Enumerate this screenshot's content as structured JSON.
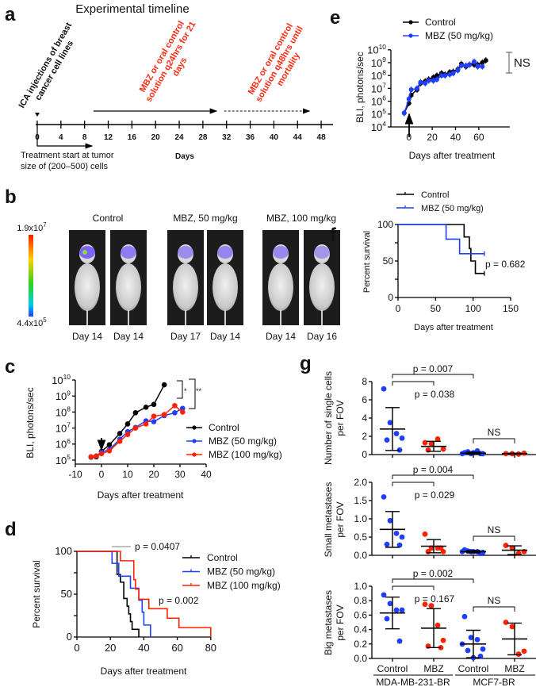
{
  "log_base_label": "10",
  "panel_a": {
    "label": "a",
    "title": "Experimental timeline",
    "axis_ticks": [
      "0",
      "4",
      "8",
      "12",
      "16",
      "20",
      "24",
      "28",
      "32",
      "36",
      "40",
      "44",
      "48"
    ],
    "xlabel": "Days",
    "injection_text": [
      "ICA injections of breast",
      "cancer cell lines"
    ],
    "phase1_text": [
      "MBZ or oral control",
      "solution q24hrs for 21",
      "days"
    ],
    "phase1_days": [
      9.5,
      30.3
    ],
    "phase2_text": [
      "MBZ or oral control",
      "solution q48hrs until",
      "mortality"
    ],
    "phase2_days": [
      31.6,
      46
    ],
    "treatment_note": [
      "Treatment start at tumor",
      "size of (200–500) cells"
    ],
    "accent_color": "#ff2a14"
  },
  "panel_b": {
    "label": "b",
    "colorbar_max": {
      "mantissa": "1.9x10",
      "exp": "7"
    },
    "colorbar_min": {
      "mantissa": "4.4x10",
      "exp": "5"
    },
    "groups": [
      {
        "name": "Control",
        "mice": [
          {
            "day": "Day 14",
            "signal": 0.9
          },
          {
            "day": "Day 14",
            "signal": 0.6
          }
        ]
      },
      {
        "name": "MBZ, 50 mg/kg",
        "mice": [
          {
            "day": "Day 17",
            "signal": 0.4
          },
          {
            "day": "Day 14",
            "signal": 0.5
          }
        ]
      },
      {
        "name": "MBZ, 100 mg/kg",
        "mice": [
          {
            "day": "Day 14",
            "signal": 0.45
          },
          {
            "day": "Day 16",
            "signal": 0.3
          }
        ]
      }
    ]
  },
  "chart_data": [
    {
      "panel": "c",
      "type": "line",
      "yscale": "log",
      "xlabel": "Days after treatment",
      "ylabel": "BLI, photons/sec",
      "xlim": [
        -10,
        40
      ],
      "xticks": [
        "-10",
        "0",
        "10",
        "20",
        "30",
        "40"
      ],
      "ylim_exp": [
        5,
        10
      ],
      "yticks_exp": [
        "5",
        "6",
        "7",
        "8",
        "9",
        "10"
      ],
      "treatment_arrow_day": 0,
      "significance": [
        "*",
        "**"
      ],
      "series": [
        {
          "name": "Control",
          "color": "#000000",
          "x": [
            -4,
            -2,
            0,
            3,
            7,
            10,
            13,
            17,
            20,
            24
          ],
          "y": [
            160000.0,
            160000.0,
            350000.0,
            900000.0,
            4600000.0,
            18000000.0,
            90000000.0,
            200000000.0,
            300000000.0,
            5000000000.0
          ]
        },
        {
          "name": "MBZ (50 mg/kg)",
          "color": "#1f3fff",
          "x": [
            -4,
            -2,
            0,
            3,
            7,
            10,
            13,
            17,
            20,
            24,
            28,
            31
          ],
          "y": [
            150000.0,
            180000.0,
            320000.0,
            450000.0,
            2000000.0,
            6000000.0,
            11000000.0,
            28000000.0,
            25000000.0,
            60000000.0,
            90000000.0,
            170000000.0
          ]
        },
        {
          "name": "MBZ (100 mg/kg)",
          "color": "#ff2200",
          "x": [
            -4,
            -2,
            0,
            3,
            7,
            10,
            13,
            17,
            20,
            24,
            28,
            31
          ],
          "y": [
            160000.0,
            180000.0,
            250000.0,
            380000.0,
            1500000.0,
            4000000.0,
            10000000.0,
            18000000.0,
            55000000.0,
            70000000.0,
            250000000.0,
            100000000.0
          ]
        }
      ],
      "legend": "right"
    },
    {
      "panel": "d",
      "type": "line",
      "subtype": "kaplan-meier",
      "xlabel": "Days after treatment",
      "ylabel": "Percent survival",
      "xlim": [
        0,
        80
      ],
      "xticks": [
        "0",
        "20",
        "40",
        "60",
        "80"
      ],
      "ylim": [
        0,
        100
      ],
      "yticks": [
        "0",
        "50",
        "100"
      ],
      "annotations": [
        "p = 0.0407",
        "p = 0.002"
      ],
      "series": [
        {
          "name": "Control",
          "color": "#000000",
          "steps": [
            [
              0,
              100
            ],
            [
              24,
              73
            ],
            [
              26,
              64
            ],
            [
              28,
              45
            ],
            [
              30,
              36
            ],
            [
              31,
              27
            ],
            [
              32,
              18
            ],
            [
              33,
              9
            ],
            [
              37,
              0
            ]
          ]
        },
        {
          "name": "MBZ (50 mg/kg)",
          "color": "#1f3fff",
          "steps": [
            [
              0,
              100
            ],
            [
              21,
              86
            ],
            [
              25,
              71
            ],
            [
              32,
              57
            ],
            [
              37,
              43
            ],
            [
              39,
              29
            ],
            [
              40,
              14
            ],
            [
              44,
              0
            ]
          ]
        },
        {
          "name": "MBZ (100 mg/kg)",
          "color": "#ff2200",
          "steps": [
            [
              0,
              100
            ],
            [
              26,
              89
            ],
            [
              34,
              67
            ],
            [
              35,
              56
            ],
            [
              37,
              44
            ],
            [
              43,
              33
            ],
            [
              54,
              22
            ],
            [
              61,
              11
            ],
            [
              80,
              0
            ]
          ]
        }
      ],
      "legend": "top-right"
    },
    {
      "panel": "e",
      "type": "line",
      "yscale": "log",
      "xlabel": "Days after treatment",
      "ylabel": "BLI, photons/sec",
      "xlim": [
        -10,
        80
      ],
      "xticks": [
        "0",
        "20",
        "40",
        "60"
      ],
      "ylim_exp": [
        4,
        10
      ],
      "yticks_exp": [
        "4",
        "5",
        "6",
        "7",
        "8",
        "9",
        "10"
      ],
      "annotation": "NS",
      "series": [
        {
          "name": "Control",
          "color": "#000000",
          "x": [
            -4,
            0,
            2,
            7,
            10,
            14,
            17,
            21,
            24,
            28,
            31,
            35,
            38,
            42,
            45,
            49,
            52,
            56,
            59,
            63,
            66
          ],
          "y": [
            120000.0,
            700000.0,
            3000000.0,
            8000000.0,
            25000000.0,
            35000000.0,
            50000000.0,
            70000000.0,
            100000000.0,
            150000000.0,
            120000000.0,
            180000000.0,
            200000000.0,
            300000000.0,
            800000000.0,
            500000000.0,
            700000000.0,
            700000000.0,
            700000000.0,
            1000000000.0,
            1500000000.0
          ]
        },
        {
          "name": "MBZ (50 mg/kg)",
          "color": "#1f3fff",
          "x": [
            -4,
            0,
            2,
            7,
            10,
            14,
            17,
            21,
            24,
            28,
            31,
            35,
            38,
            42,
            45,
            49,
            52,
            56,
            59,
            63
          ],
          "y": [
            120000.0,
            1500000.0,
            8000000.0,
            10000000.0,
            30000000.0,
            25000000.0,
            40000000.0,
            40000000.0,
            50000000.0,
            100000000.0,
            100000000.0,
            120000000.0,
            150000000.0,
            250000000.0,
            600000000.0,
            600000000.0,
            700000000.0,
            1200000000.0,
            500000000.0,
            500000000.0
          ]
        }
      ],
      "legend": "top-left"
    },
    {
      "panel": "f",
      "type": "line",
      "subtype": "kaplan-meier",
      "xlabel": "Days after treatment",
      "ylabel": "Percent survival",
      "xlim": [
        0,
        150
      ],
      "xticks": [
        "0",
        "50",
        "100",
        "150"
      ],
      "ylim": [
        0,
        100
      ],
      "yticks": [
        "0",
        "50",
        "100"
      ],
      "annotation": "p = 0.682",
      "series": [
        {
          "name": "Control",
          "color": "#000000",
          "steps": [
            [
              0,
              100
            ],
            [
              88,
              83
            ],
            [
              95,
              67
            ],
            [
              97,
              50
            ],
            [
              103,
              33
            ],
            [
              115,
              33
            ]
          ]
        },
        {
          "name": "MBZ (50 mg/kg)",
          "color": "#1f3fff",
          "steps": [
            [
              0,
              100
            ],
            [
              64,
              80
            ],
            [
              82,
              60
            ],
            [
              115,
              60
            ]
          ]
        }
      ],
      "legend": "top-left"
    },
    {
      "panel": "g",
      "type": "scatter",
      "categories": [
        "Control",
        "MBZ",
        "Control",
        "MBZ"
      ],
      "groups": [
        "MDA-MB-231-BR",
        "MCF7-BR"
      ],
      "colors": [
        "#1f3fff",
        "#ff2200",
        "#1f3fff",
        "#ff2200"
      ],
      "subplots": [
        {
          "ylabel": [
            "Number of single cells",
            "per FOV"
          ],
          "ylim": [
            0,
            8
          ],
          "yticks": [
            "0",
            "2",
            "4",
            "6",
            "8"
          ],
          "p_outer": "p = 0.007",
          "p_inner": "p = 0.038",
          "p_right": "NS",
          "values": [
            [
              7.2,
              3.5,
              2.3,
              1.8,
              1.6,
              0.5
            ],
            [
              1.3,
              1.2,
              1.7,
              0.6,
              0.5
            ],
            [
              0.2,
              0.1,
              0.4,
              0.1,
              0.3,
              0.1,
              0.2,
              0.1
            ],
            [
              0.1,
              0.1,
              0.05,
              0.15
            ]
          ],
          "mean": [
            2.8,
            0.9,
            0.15,
            0.1
          ],
          "sd": [
            2.35,
            0.55,
            0.12,
            0.05
          ]
        },
        {
          "ylabel": [
            "Small metastases",
            "per FOV"
          ],
          "ylim": [
            0,
            2
          ],
          "yticks": [
            "0.0",
            "0.5",
            "1.0",
            "1.5",
            "2.0"
          ],
          "p_outer": "p = 0.004",
          "p_inner": "p = 0.029",
          "p_right": "NS",
          "values": [
            [
              1.6,
              0.95,
              0.6,
              0.5,
              0.3,
              0.28
            ],
            [
              0.58,
              0.2,
              0.2,
              0.1,
              0.1,
              0.2
            ],
            [
              0.15,
              0.1,
              0.1,
              0.08,
              0.12,
              0.05,
              0.1,
              0.1
            ],
            [
              0.27,
              0.2,
              0.05,
              0.1
            ]
          ],
          "mean": [
            0.71,
            0.25,
            0.1,
            0.14
          ],
          "sd": [
            0.49,
            0.18,
            0.03,
            0.12
          ]
        },
        {
          "ylabel": [
            "Big metastases",
            "per FOV"
          ],
          "ylim": [
            0,
            1
          ],
          "yticks": [
            "0.0",
            "0.2",
            "0.4",
            "0.6",
            "0.8",
            "1.0"
          ],
          "p_outer": "p = 0.002",
          "p_inner": "p = 0.167",
          "p_right": "NS",
          "values": [
            [
              0.88,
              0.76,
              0.67,
              0.67,
              0.55,
              0.24
            ],
            [
              0.75,
              0.73,
              0.46,
              0.25,
              0.17,
              0.15
            ],
            [
              0.58,
              0.29,
              0.26,
              0.13,
              0.11,
              0.03,
              0.01,
              0.2
            ],
            [
              0.5,
              0.44,
              0.06,
              0.1
            ]
          ],
          "mean": [
            0.63,
            0.42,
            0.2,
            0.27
          ],
          "sd": [
            0.22,
            0.27,
            0.19,
            0.22
          ]
        }
      ]
    }
  ]
}
